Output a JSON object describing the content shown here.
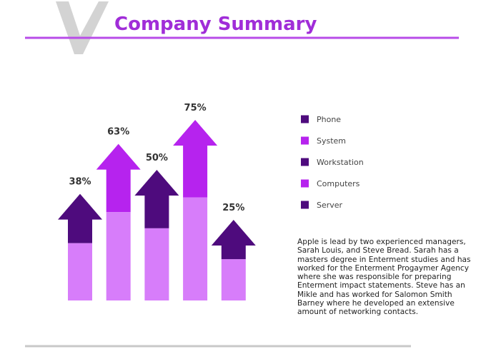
{
  "chart_data": {
    "type": "arrow",
    "title": "Company Summary",
    "categories": [
      "Phone",
      "System",
      "Workstation",
      "Computers",
      "Server"
    ],
    "values": [
      38,
      63,
      50,
      75,
      25
    ],
    "value_labels": [
      "38%",
      "63%",
      "50%",
      "75%",
      "25%"
    ],
    "colors": [
      "#4e0b7d",
      "#b623ee",
      "#4e0b7d",
      "#b623ee",
      "#4e0b7d"
    ],
    "base_color": "#d77dfa",
    "title_color": "#a02dd8"
  },
  "description": "Apple is lead by two experienced managers, Sarah Louis, and Steve Bread. Sarah has a masters degree in Enterment studies and has worked for the Enterment Progaymer Agency where she was responsible for preparing Enterment impact statements. Steve has an Mikle and has worked for Salomon Smith Barney where he developed an extensive amount of networking contacts."
}
